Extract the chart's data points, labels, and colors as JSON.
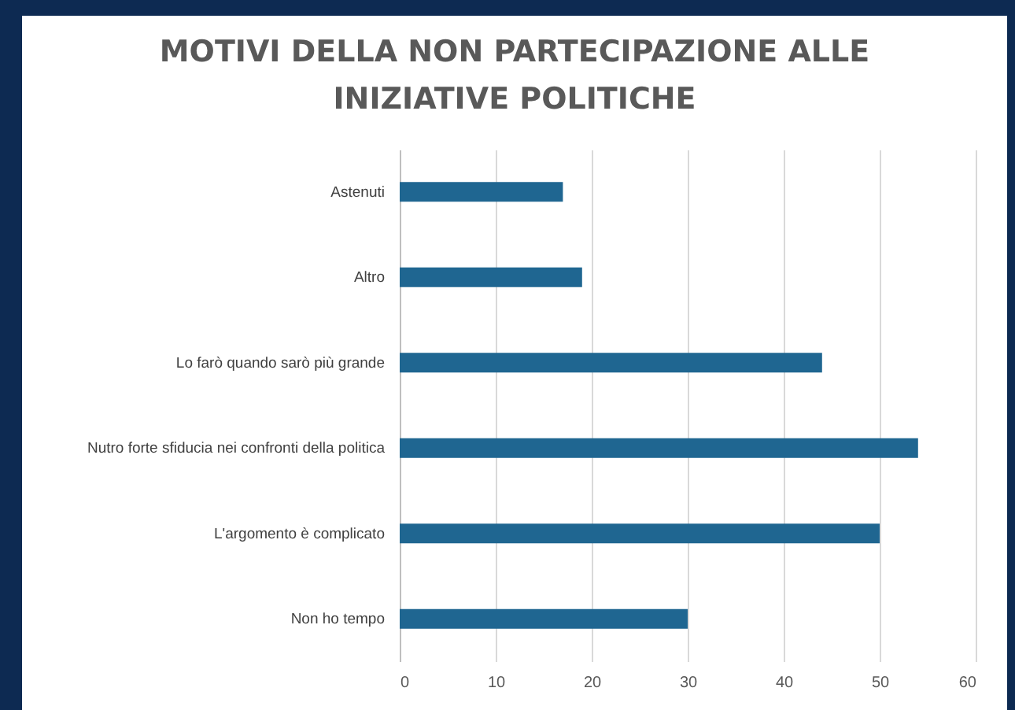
{
  "chart_data": {
    "type": "bar",
    "orientation": "horizontal",
    "title": "MOTIVI DELLA NON PARTECIPAZIONE ALLE INIZIATIVE POLITICHE",
    "categories": [
      "Astenuti",
      "Altro",
      "Lo farò quando sarò più grande",
      "Nutro forte sfiducia nei confronti della politica",
      "L'argomento è complicato",
      "Non ho tempo"
    ],
    "values": [
      17,
      19,
      44,
      54,
      50,
      30
    ],
    "color": "#1f6691",
    "xlim": [
      0,
      60
    ],
    "xticks": [
      0,
      10,
      20,
      30,
      40,
      50,
      60
    ],
    "grid": "x"
  }
}
